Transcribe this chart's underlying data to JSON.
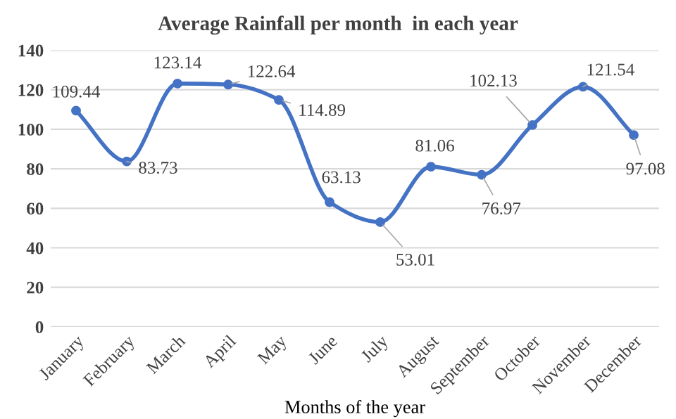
{
  "chart_data": {
    "type": "line",
    "title": "Average Rainfall per month  in each year",
    "xlabel": "Months of the year",
    "categories": [
      "January",
      "February",
      "March",
      "April",
      "May",
      "June",
      "July",
      "August",
      "September",
      "October",
      "November",
      "December"
    ],
    "series": [
      {
        "color": "#4472c4",
        "values": [
          109.44,
          83.73,
          123.14,
          122.64,
          114.89,
          63.13,
          53.01,
          81.06,
          76.97,
          102.13,
          121.54,
          97.08
        ]
      }
    ],
    "ylim": [
      0,
      140
    ],
    "yticks": [
      0,
      20,
      40,
      60,
      80,
      100,
      120,
      140
    ],
    "grid": "y",
    "data_labels": true,
    "marker": "circle",
    "line_style": "solid",
    "legend": false
  }
}
